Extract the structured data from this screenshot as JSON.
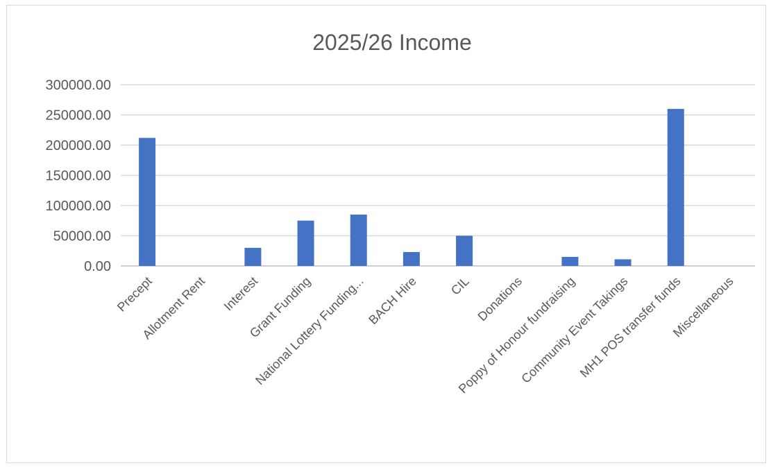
{
  "chart_data": {
    "type": "bar",
    "title": "2025/26 Income",
    "xlabel": "",
    "ylabel": "",
    "categories": [
      "Precept",
      "Allotment Rent",
      "Interest",
      "Grant Funding",
      "National Lottery Funding...",
      "BACH Hire",
      "CIL",
      "Donations",
      "Poppy of Honour fundraising",
      "Community Event Takings",
      "MH1 POS transfer funds",
      "Miscellaneous"
    ],
    "values": [
      212000,
      0,
      30000,
      75000,
      85000,
      23000,
      50000,
      0,
      15000,
      11000,
      260000,
      0
    ],
    "ylim": [
      0,
      300000
    ],
    "yticks": [
      "0.00",
      "50000.00",
      "100000.00",
      "150000.00",
      "200000.00",
      "250000.00",
      "300000.00"
    ],
    "bar_color": "#4472C4",
    "grid": true,
    "legend": "none"
  }
}
